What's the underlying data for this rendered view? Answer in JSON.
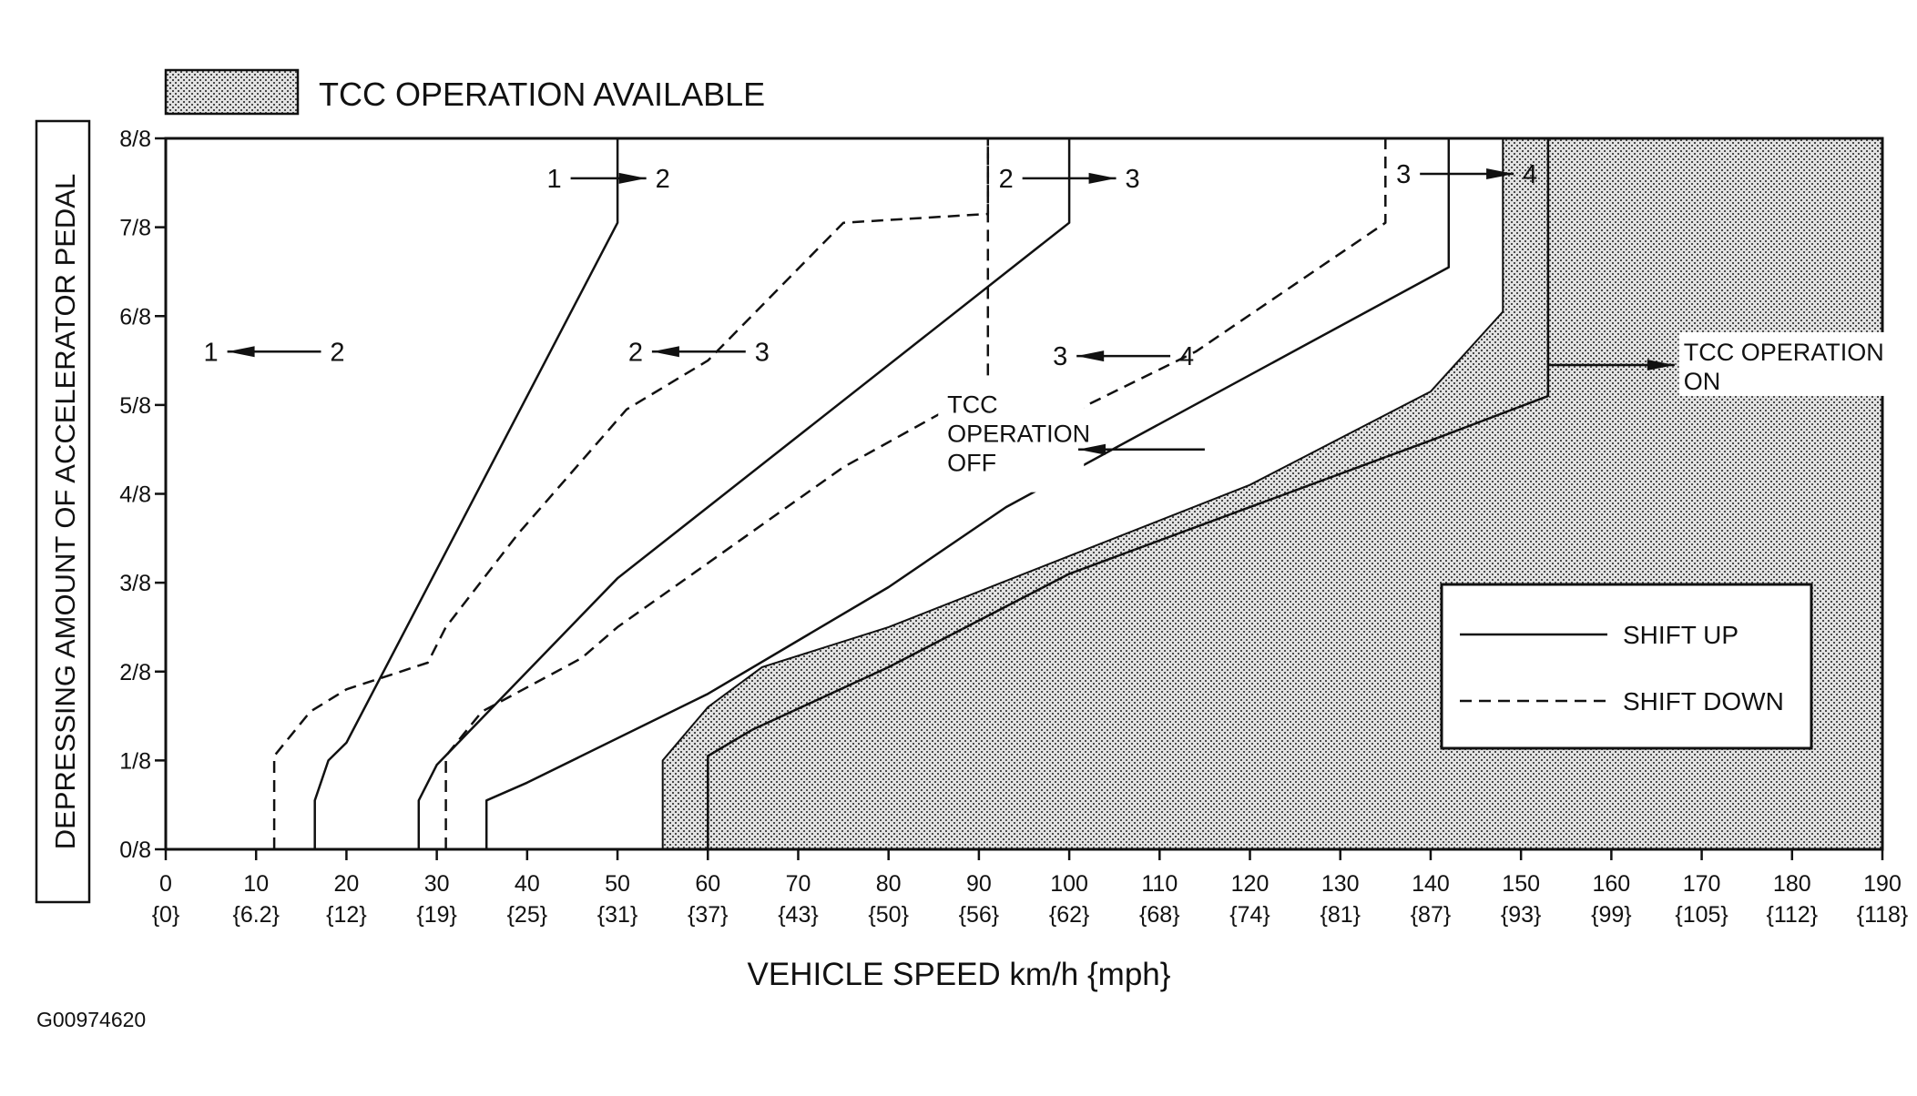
{
  "legend_top": {
    "label": "TCC OPERATION AVAILABLE"
  },
  "chart_data": {
    "type": "line",
    "title": "",
    "xlabel": "VEHICLE SPEED  km/h {mph}",
    "ylabel": "DEPRESSING AMOUNT OF ACCELERATOR PEDAL",
    "xlim": [
      0,
      190
    ],
    "ylim": [
      0,
      8
    ],
    "x_ticks": [
      0,
      10,
      20,
      30,
      40,
      50,
      60,
      70,
      80,
      90,
      100,
      110,
      120,
      130,
      140,
      150,
      160,
      170,
      180,
      190
    ],
    "x_tick_labels_mph": [
      "{0}",
      "{6.2}",
      "{12}",
      "{19}",
      "{25}",
      "{31}",
      "{37}",
      "{43}",
      "{50}",
      "{56}",
      "{62}",
      "{68}",
      "{74}",
      "{81}",
      "{87}",
      "{93}",
      "{99}",
      "{105}",
      "{112}",
      "{118}"
    ],
    "y_ticks": [
      "0/8",
      "1/8",
      "2/8",
      "3/8",
      "4/8",
      "5/8",
      "6/8",
      "7/8",
      "8/8"
    ],
    "legend": {
      "placement": "bottom-right",
      "entries": [
        {
          "label": "SHIFT UP",
          "style": "solid"
        },
        {
          "label": "SHIFT DOWN",
          "style": "dashed"
        }
      ]
    },
    "series": [
      {
        "gear": "1 → 2",
        "style": "solid",
        "x": [
          16.5,
          16.5,
          18,
          20,
          50,
          50
        ],
        "y": [
          0,
          0.55,
          1,
          1.2,
          7.05,
          8
        ]
      },
      {
        "gear": "2 → 1",
        "style": "dashed",
        "x": [
          12,
          12,
          16,
          20,
          29,
          31,
          39,
          51,
          60,
          75,
          91,
          91
        ],
        "y": [
          0,
          1.05,
          1.55,
          1.8,
          2.1,
          2.5,
          3.55,
          4.95,
          5.5,
          7.05,
          7.15,
          8
        ]
      },
      {
        "gear": "2 → 3",
        "style": "solid",
        "x": [
          28,
          28,
          30,
          50,
          60,
          100,
          100
        ],
        "y": [
          0,
          0.55,
          0.95,
          3.05,
          3.85,
          7.05,
          8
        ]
      },
      {
        "gear": "3 → 2",
        "style": "dashed",
        "x": [
          31,
          31,
          33,
          35,
          46,
          50,
          75,
          91,
          91
        ],
        "y": [
          0,
          1.05,
          1.3,
          1.55,
          2.15,
          2.5,
          4.3,
          5.2,
          8
        ]
      },
      {
        "gear": "3 → 4",
        "style": "solid",
        "x": [
          35.5,
          35.5,
          40,
          60,
          80,
          93,
          142,
          142
        ],
        "y": [
          0,
          0.55,
          0.75,
          1.75,
          2.95,
          3.85,
          6.55,
          8
        ]
      },
      {
        "gear": "4 → 3",
        "style": "dashed",
        "x": [
          93,
          102,
          114,
          135,
          135
        ],
        "y": [
          4.5,
          5.0,
          5.6,
          7.05,
          8
        ]
      }
    ],
    "shaded_region": {
      "name": "TCC operation available",
      "x": [
        55,
        55,
        60,
        66,
        80,
        100,
        120,
        140,
        148,
        148,
        190,
        190
      ],
      "y": [
        0,
        1.0,
        1.6,
        2.05,
        2.5,
        3.3,
        4.1,
        5.15,
        6.05,
        8,
        8,
        0
      ]
    },
    "tcc_boundary": {
      "style": "solid",
      "x": [
        60,
        60,
        65,
        80,
        100,
        120,
        140,
        153,
        153
      ],
      "y": [
        0,
        1.05,
        1.35,
        2.05,
        3.1,
        3.85,
        4.6,
        5.1,
        8
      ]
    },
    "gear_labels": [
      {
        "from": "1",
        "to": "2",
        "direction": "up",
        "x": [
          43,
          55
        ],
        "y": 7.55
      },
      {
        "from": "2",
        "to": "3",
        "direction": "up",
        "x": [
          93,
          107
        ],
        "y": 7.55
      },
      {
        "from": "3",
        "to": "4",
        "direction": "up",
        "x": [
          137,
          151
        ],
        "y": 7.6
      },
      {
        "from": "2",
        "to": "1",
        "direction": "down",
        "x": [
          19,
          5
        ],
        "y": 5.6
      },
      {
        "from": "3",
        "to": "2",
        "direction": "down",
        "x": [
          66,
          52
        ],
        "y": 5.6
      },
      {
        "from": "4",
        "to": "3",
        "direction": "down",
        "x": [
          113,
          99
        ],
        "y": 5.55
      }
    ],
    "annotations": [
      {
        "lines": [
          "TCC",
          "OPERATION",
          "OFF"
        ],
        "arrow_to_x": 101,
        "arrow_from_x": 115,
        "arrow_y": 4.5
      },
      {
        "lines": [
          "TCC OPERATION",
          "ON"
        ],
        "arrow_to_x": 167,
        "arrow_from_x": 153,
        "arrow_y": 5.45
      }
    ]
  },
  "figure_code": "G00974620"
}
